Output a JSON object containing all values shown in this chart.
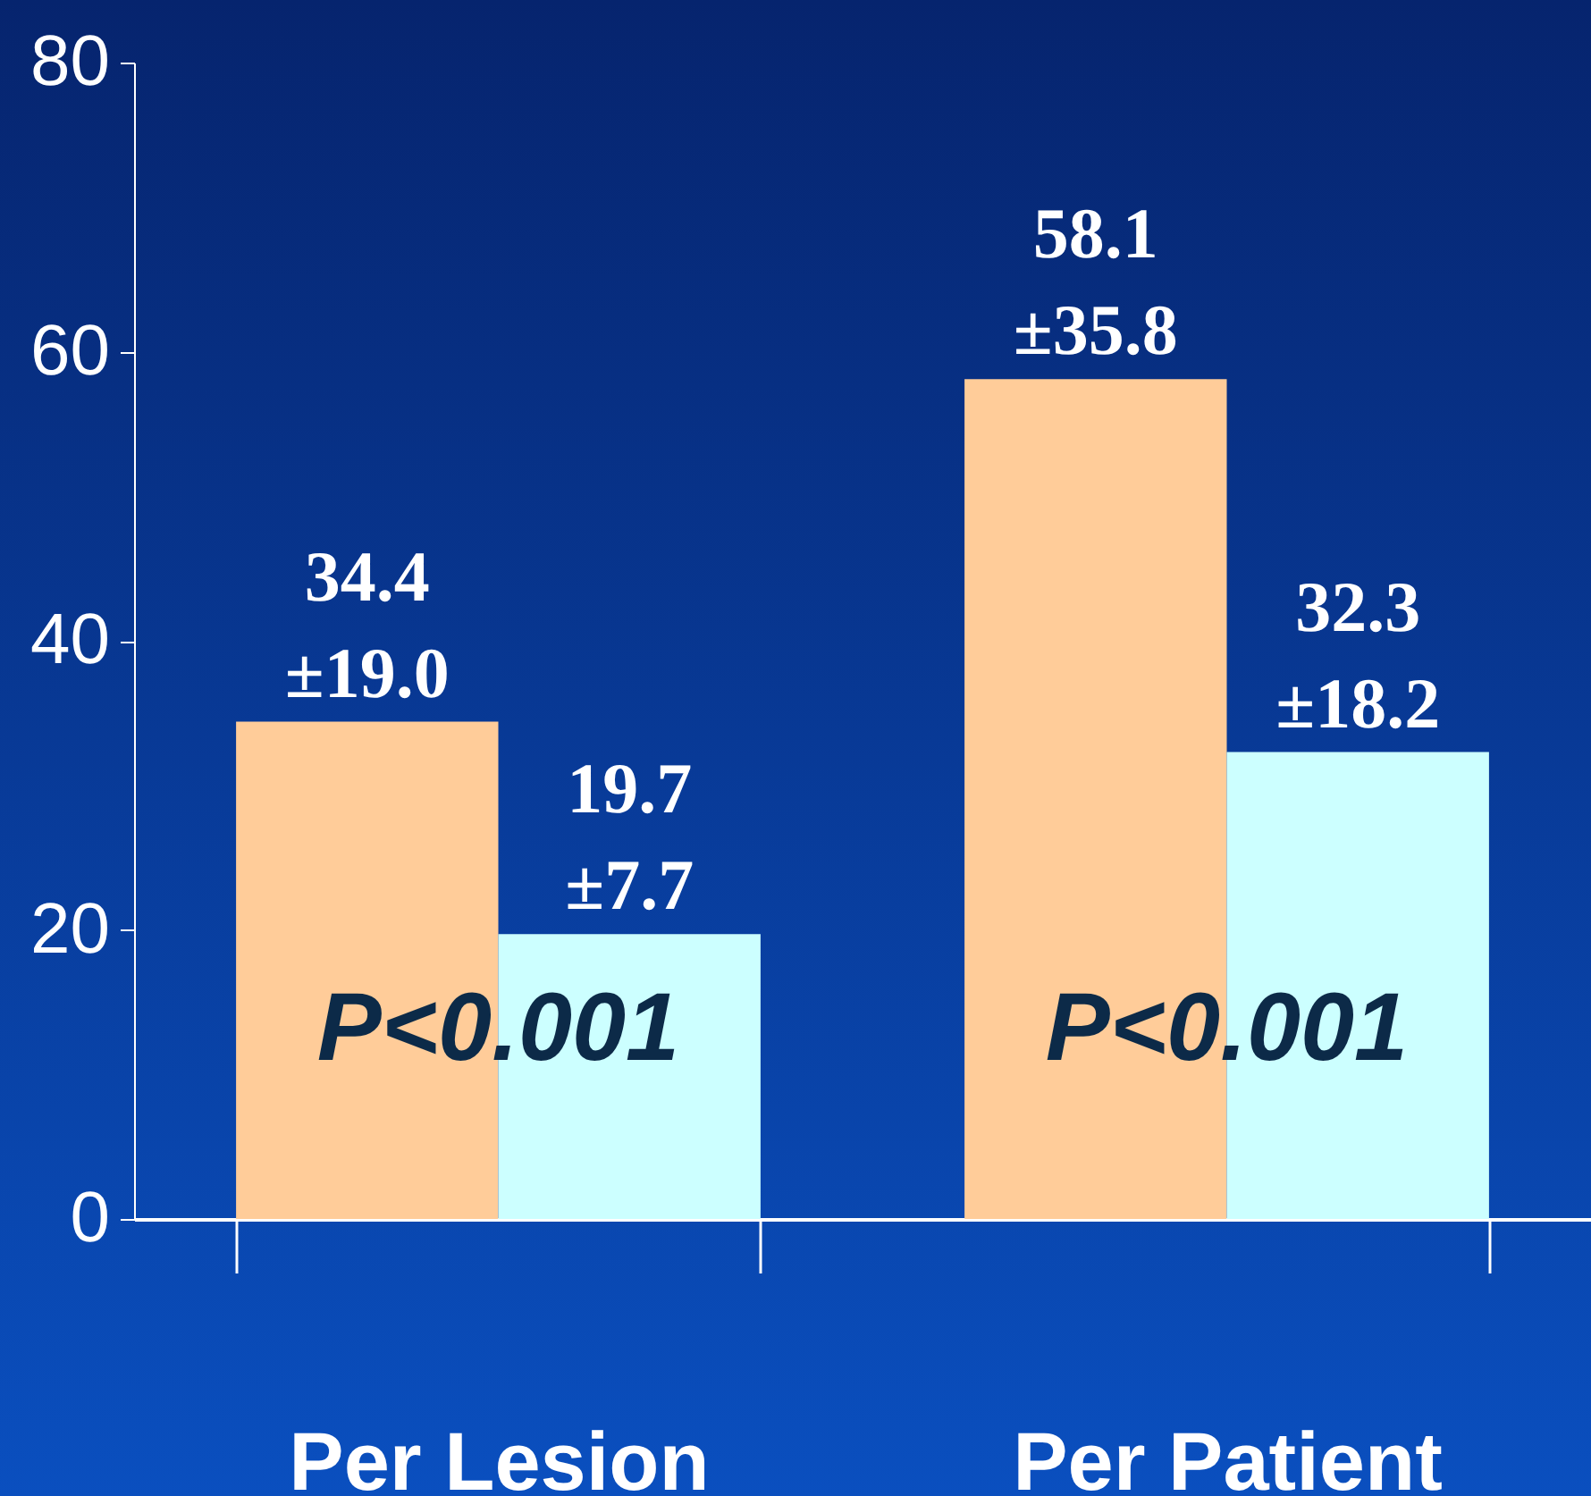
{
  "chart_data": {
    "type": "bar",
    "categories": [
      "Per Lesion",
      "Per Patient"
    ],
    "series": [
      {
        "color": "#ffcc99",
        "values": [
          34.4,
          58.1
        ],
        "value_labels": [
          "34.4\n±19.0",
          "58.1\n±35.8"
        ]
      },
      {
        "color": "#ccffff",
        "values": [
          19.7,
          32.3
        ],
        "value_labels": [
          "19.7\n±7.7",
          "32.3\n±18.2"
        ]
      }
    ],
    "ylim": [
      0,
      80
    ],
    "yticks": [
      0,
      20,
      40,
      60,
      80
    ],
    "grid": false,
    "legend": false,
    "annotations": [
      {
        "text": "P<0.001",
        "x": "Per Lesion",
        "y": 13
      },
      {
        "text": "P<0.001",
        "x": "Per Patient",
        "y": 13
      }
    ]
  }
}
